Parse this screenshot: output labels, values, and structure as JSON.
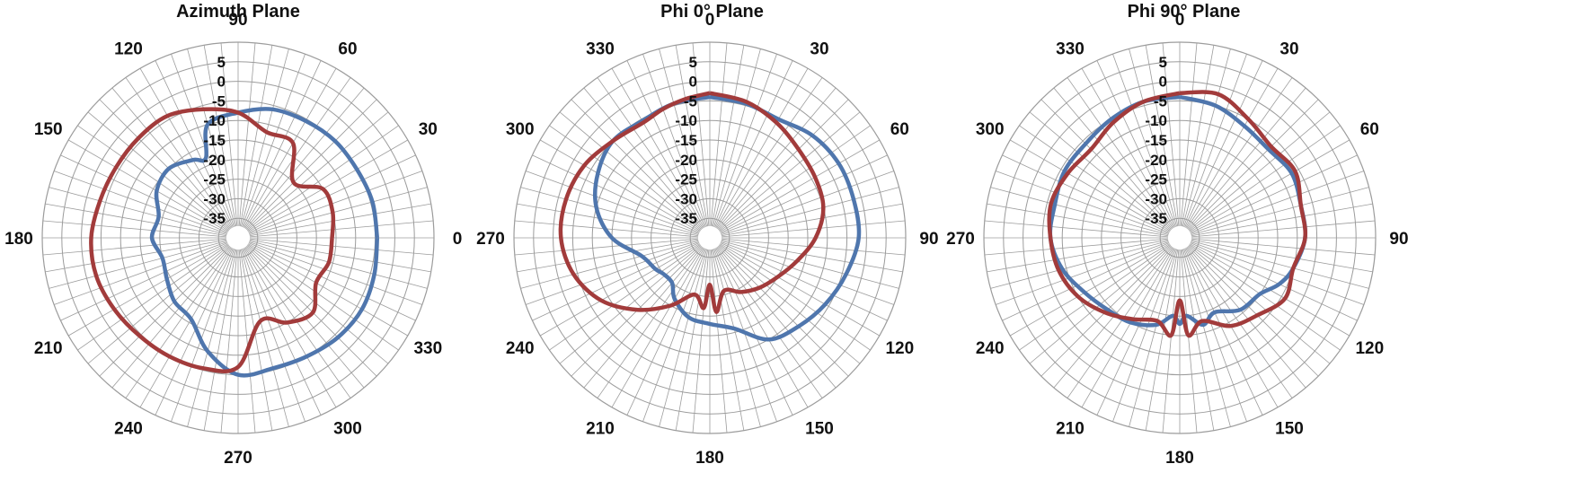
{
  "colors": {
    "series_blue": "#4f76ad",
    "series_red": "#a23b3b",
    "grid": "#9c9c9c",
    "text": "#111111"
  },
  "chart_data": [
    {
      "type": "polar-line",
      "title": "Azimuth Plane",
      "angle_direction": "counterclockwise",
      "zero_angle_at": "right",
      "r_ticks": [
        5,
        0,
        -5,
        -10,
        -15,
        -20,
        -25,
        -30,
        -35
      ],
      "r_range": [
        -40,
        10
      ],
      "angle_ticks": [
        90,
        60,
        30,
        0,
        330,
        300,
        270,
        240,
        210,
        180,
        150,
        120
      ],
      "series": [
        {
          "color": "#4f76ad",
          "theta": [
            0,
            15,
            30,
            45,
            60,
            75,
            90,
            105,
            112,
            120,
            135,
            150,
            165,
            180,
            195,
            210,
            225,
            240,
            255,
            270,
            285,
            300,
            315,
            330,
            345,
            360
          ],
          "r": [
            -4.5,
            -4.5,
            -5,
            -5,
            -5.5,
            -6,
            -8,
            -10,
            -18,
            -17,
            -15,
            -16,
            -19,
            -18,
            -20,
            -19,
            -17,
            -16,
            -10,
            -5,
            -5.5,
            -5,
            -4,
            -3.5,
            -4,
            -4.5
          ]
        },
        {
          "color": "#a23b3b",
          "theta": [
            0,
            15,
            30,
            45,
            60,
            75,
            90,
            105,
            120,
            135,
            150,
            165,
            180,
            195,
            210,
            225,
            240,
            255,
            270,
            285,
            300,
            315,
            330,
            345,
            360
          ],
          "r": [
            -16,
            -15,
            -15,
            -20,
            -12,
            -12,
            -8,
            -6,
            -4,
            -4,
            -4,
            -3.5,
            -2.5,
            -2.5,
            -3.5,
            -4.5,
            -5,
            -5.5,
            -7,
            -18,
            -15,
            -13,
            -17,
            -16,
            -16
          ]
        }
      ]
    },
    {
      "type": "polar-line",
      "title": "Phi 0° Plane",
      "angle_direction": "clockwise",
      "zero_angle_at": "top",
      "r_ticks": [
        5,
        0,
        -5,
        -10,
        -15,
        -20,
        -25,
        -30,
        -35
      ],
      "r_range": [
        -40,
        10
      ],
      "angle_ticks": [
        0,
        30,
        60,
        90,
        120,
        150,
        180,
        210,
        240,
        270,
        300,
        330
      ],
      "series": [
        {
          "color": "#4f76ad",
          "theta": [
            0,
            15,
            30,
            45,
            60,
            75,
            90,
            105,
            120,
            135,
            150,
            165,
            180,
            195,
            210,
            220,
            232,
            240,
            255,
            270,
            285,
            300,
            315,
            330,
            345,
            360
          ],
          "r": [
            -4,
            -4.5,
            -5,
            -3,
            -2,
            -2,
            -2,
            -4,
            -6,
            -8,
            -10,
            -16,
            -18,
            -19,
            -22,
            -25,
            -25,
            -24,
            -22,
            -15,
            -10,
            -7,
            -5,
            -5.5,
            -4.5,
            -4
          ]
        },
        {
          "color": "#a23b3b",
          "theta": [
            0,
            15,
            30,
            45,
            60,
            75,
            90,
            105,
            120,
            135,
            150,
            165,
            175,
            180,
            185,
            195,
            210,
            225,
            240,
            255,
            270,
            285,
            300,
            315,
            330,
            340,
            350,
            360
          ],
          "r": [
            -3,
            -4,
            -6,
            -8,
            -9,
            -10,
            -13,
            -17,
            -20,
            -22,
            -24,
            -26,
            -21,
            -28,
            -22,
            -25,
            -20,
            -14,
            -8,
            -4,
            -2,
            -2,
            -3,
            -5,
            -6,
            -5,
            -4,
            -3
          ]
        }
      ]
    },
    {
      "type": "polar-line",
      "title": "Phi 90° Plane",
      "angle_direction": "clockwise",
      "zero_angle_at": "top",
      "r_ticks": [
        5,
        0,
        -5,
        -10,
        -15,
        -20,
        -25,
        -30,
        -35
      ],
      "r_range": [
        -40,
        10
      ],
      "angle_ticks": [
        0,
        30,
        60,
        90,
        120,
        150,
        180,
        210,
        240,
        270,
        300,
        330
      ],
      "series": [
        {
          "color": "#4f76ad",
          "theta": [
            0,
            15,
            30,
            45,
            60,
            75,
            90,
            105,
            115,
            125,
            140,
            155,
            165,
            175,
            180,
            185,
            195,
            210,
            225,
            240,
            255,
            270,
            285,
            300,
            315,
            330,
            345,
            360
          ],
          "r": [
            -4,
            -5,
            -7,
            -8,
            -7,
            -8,
            -8,
            -10,
            -12,
            -15,
            -16,
            -19,
            -17,
            -20,
            -18,
            -20,
            -17,
            -15,
            -14,
            -12,
            -9,
            -7,
            -7,
            -6,
            -6,
            -5,
            -4,
            -4
          ]
        },
        {
          "color": "#a23b3b",
          "theta": [
            0,
            15,
            30,
            45,
            60,
            75,
            90,
            105,
            120,
            135,
            150,
            165,
            175,
            180,
            185,
            195,
            210,
            225,
            240,
            255,
            270,
            285,
            300,
            315,
            330,
            345,
            360
          ],
          "r": [
            -3,
            -2,
            -5,
            -7,
            -6,
            -8,
            -8,
            -10,
            -9,
            -12,
            -14,
            -18,
            -15,
            -24,
            -15,
            -18,
            -16,
            -13,
            -10,
            -8,
            -7,
            -6,
            -7,
            -8,
            -6,
            -4,
            -3
          ]
        }
      ]
    }
  ]
}
